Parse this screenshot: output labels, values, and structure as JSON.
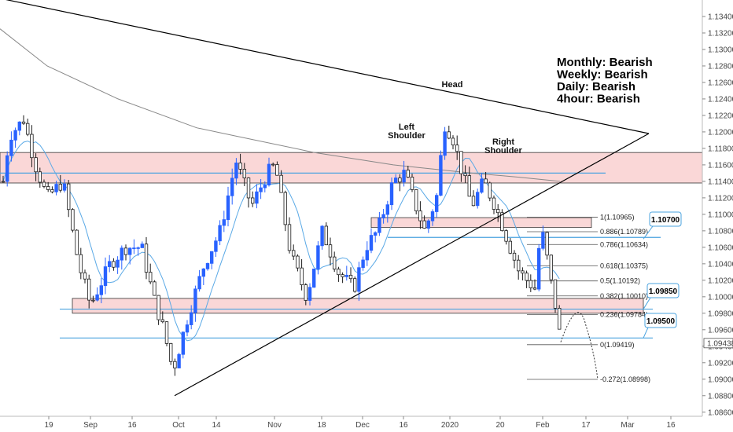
{
  "chart_data": {
    "type": "candlestick",
    "ylim": [
      1.0855,
      1.136
    ],
    "ytick_values": [
      1.086,
      1.088,
      1.09,
      1.092,
      1.094,
      1.096,
      1.098,
      1.1,
      1.102,
      1.104,
      1.106,
      1.108,
      1.11,
      1.112,
      1.114,
      1.116,
      1.118,
      1.12,
      1.122,
      1.124,
      1.126,
      1.128,
      1.13,
      1.132,
      1.134
    ],
    "ytick_labels": [
      "1.08600",
      "1.08800",
      "1.09000",
      "1.09200",
      "1.09400",
      "1.09600",
      "1.09800",
      "1.10000",
      "1.10200",
      "1.10400",
      "1.10600",
      "1.10800",
      "1.11000",
      "1.11200",
      "1.11400",
      "1.11600",
      "1.11800",
      "1.12000",
      "1.12200",
      "1.12400",
      "1.12600",
      "1.12800",
      "1.13000",
      "1.13200",
      "1.13400"
    ],
    "current_price_label": "1.09438",
    "current_price": 1.09438,
    "xtick_labels": [
      "19",
      "Sep",
      "16",
      "Oct",
      "14",
      "Nov",
      "18",
      "Dec",
      "16",
      "2020",
      "20",
      "Feb",
      "17",
      "Mar",
      "16"
    ],
    "timeframe_bias": [
      "Monthly: Bearish",
      "Weekly: Bearish",
      "Daily: Bearish",
      "4hour: Bearish"
    ],
    "pattern_labels": {
      "head": "Head",
      "left_shoulder": [
        "Left",
        "Shoulder"
      ],
      "right_shoulder": [
        "Right",
        "Shoulder"
      ]
    },
    "fibonacci_levels": [
      {
        "label": "1(1.10965)",
        "price": 1.10965
      },
      {
        "label": "0.886(1.10789)",
        "price": 1.10789
      },
      {
        "label": "0.786(1.10634)",
        "price": 1.10634
      },
      {
        "label": "0.618(1.10375)",
        "price": 1.10375
      },
      {
        "label": "0.5(1.10192)",
        "price": 1.10192
      },
      {
        "label": "0.382(1.10010)",
        "price": 1.1001
      },
      {
        "label": "0.236(1.09784)",
        "price": 1.09784
      },
      {
        "label": "0(1.09419)",
        "price": 1.09419
      },
      {
        "label": "-0.272(1.08998)",
        "price": 1.08998
      }
    ],
    "price_callouts": [
      {
        "label": "1.10700",
        "price": 1.107
      },
      {
        "label": "1.09850",
        "price": 1.0985
      },
      {
        "label": "1.09500",
        "price": 1.095
      }
    ],
    "zones": [
      {
        "from": 1.1138,
        "to": 1.1175
      },
      {
        "from": 1.098,
        "to": 1.0998
      },
      {
        "from": 1.1084,
        "to": 1.1096
      }
    ],
    "horizontal_lines": [
      1.115,
      1.1072,
      1.0985,
      1.095
    ],
    "colors": {
      "bull_candle": "#2962ff",
      "bear_candle": "#1a1a1a",
      "zone_fill": "#f8c9c9",
      "zone_border": "#333333",
      "support_line": "#4aa3df",
      "ma_short": "#5aa9e6",
      "ma_long": "#888888",
      "trendline": "#000000"
    }
  }
}
